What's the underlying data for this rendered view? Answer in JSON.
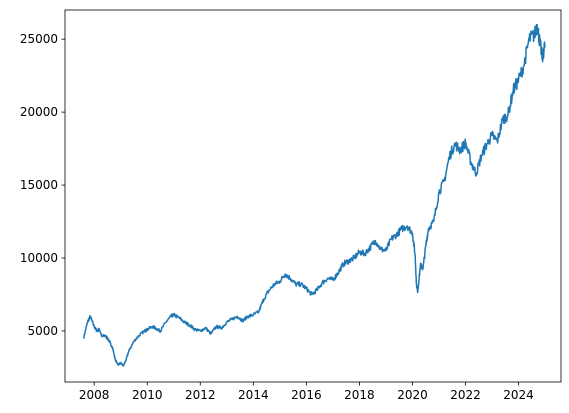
{
  "chart_data": {
    "type": "line",
    "title": "",
    "xlabel": "",
    "ylabel": "",
    "xlim": [
      2006.9,
      2025.6
    ],
    "ylim": [
      1500,
      27000
    ],
    "grid": false,
    "legend": "none",
    "line_color": "#1f77b4",
    "x_ticks": [
      {
        "value": 2008,
        "label": "2008"
      },
      {
        "value": 2010,
        "label": "2010"
      },
      {
        "value": 2012,
        "label": "2012"
      },
      {
        "value": 2014,
        "label": "2014"
      },
      {
        "value": 2016,
        "label": "2016"
      },
      {
        "value": 2018,
        "label": "2018"
      },
      {
        "value": 2020,
        "label": "2020"
      },
      {
        "value": 2022,
        "label": "2022"
      },
      {
        "value": 2024,
        "label": "2024"
      }
    ],
    "y_ticks": [
      {
        "value": 5000,
        "label": "5000"
      },
      {
        "value": 10000,
        "label": "10000"
      },
      {
        "value": 15000,
        "label": "15000"
      },
      {
        "value": 20000,
        "label": "20000"
      },
      {
        "value": 25000,
        "label": "25000"
      }
    ],
    "series": [
      {
        "x": [
          2007.6,
          2007.75,
          2007.85,
          2008.0,
          2008.1,
          2008.2,
          2008.3,
          2008.4,
          2008.5,
          2008.6,
          2008.7,
          2008.8,
          2008.9,
          2009.0,
          2009.1,
          2009.2,
          2009.3,
          2009.5,
          2009.7,
          2009.9,
          2010.0,
          2010.2,
          2010.4,
          2010.5,
          2010.7,
          2010.9,
          2011.0,
          2011.2,
          2011.4,
          2011.6,
          2011.8,
          2012.0,
          2012.2,
          2012.4,
          2012.6,
          2012.8,
          2013.0,
          2013.2,
          2013.4,
          2013.6,
          2013.8,
          2014.0,
          2014.2,
          2014.4,
          2014.6,
          2014.8,
          2015.0,
          2015.2,
          2015.4,
          2015.6,
          2015.8,
          2016.0,
          2016.2,
          2016.4,
          2016.6,
          2016.8,
          2017.0,
          2017.2,
          2017.4,
          2017.6,
          2017.8,
          2018.0,
          2018.2,
          2018.4,
          2018.6,
          2018.8,
          2019.0,
          2019.2,
          2019.4,
          2019.6,
          2019.8,
          2020.0,
          2020.1,
          2020.15,
          2020.2,
          2020.3,
          2020.4,
          2020.5,
          2020.6,
          2020.8,
          2021.0,
          2021.2,
          2021.4,
          2021.6,
          2021.8,
          2022.0,
          2022.2,
          2022.4,
          2022.6,
          2022.8,
          2023.0,
          2023.2,
          2023.4,
          2023.6,
          2023.8,
          2024.0,
          2024.2,
          2024.4,
          2024.6,
          2024.7,
          2024.8,
          2024.9,
          2025.0
        ],
        "y": [
          4500,
          5600,
          6000,
          5300,
          5000,
          5100,
          4600,
          4700,
          4500,
          4200,
          3800,
          3000,
          2700,
          2800,
          2600,
          3000,
          3600,
          4300,
          4700,
          5000,
          5100,
          5300,
          5100,
          5000,
          5600,
          6000,
          6100,
          5900,
          5600,
          5400,
          5100,
          5000,
          5200,
          4800,
          5300,
          5200,
          5600,
          5800,
          6000,
          5700,
          6000,
          6100,
          6300,
          7200,
          7800,
          8200,
          8400,
          8900,
          8600,
          8200,
          8200,
          7900,
          7500,
          7800,
          8300,
          8600,
          8500,
          9000,
          9600,
          9800,
          10000,
          10400,
          10300,
          10700,
          11200,
          10600,
          10500,
          11300,
          11600,
          12000,
          12200,
          11700,
          10200,
          8200,
          7700,
          9500,
          9300,
          10800,
          12000,
          12500,
          14500,
          15300,
          17000,
          17800,
          17400,
          17900,
          16600,
          15800,
          17000,
          17800,
          18400,
          18000,
          19500,
          19800,
          21500,
          22200,
          23200,
          25000,
          25300,
          26000,
          24800,
          23700,
          24700
        ]
      }
    ]
  }
}
